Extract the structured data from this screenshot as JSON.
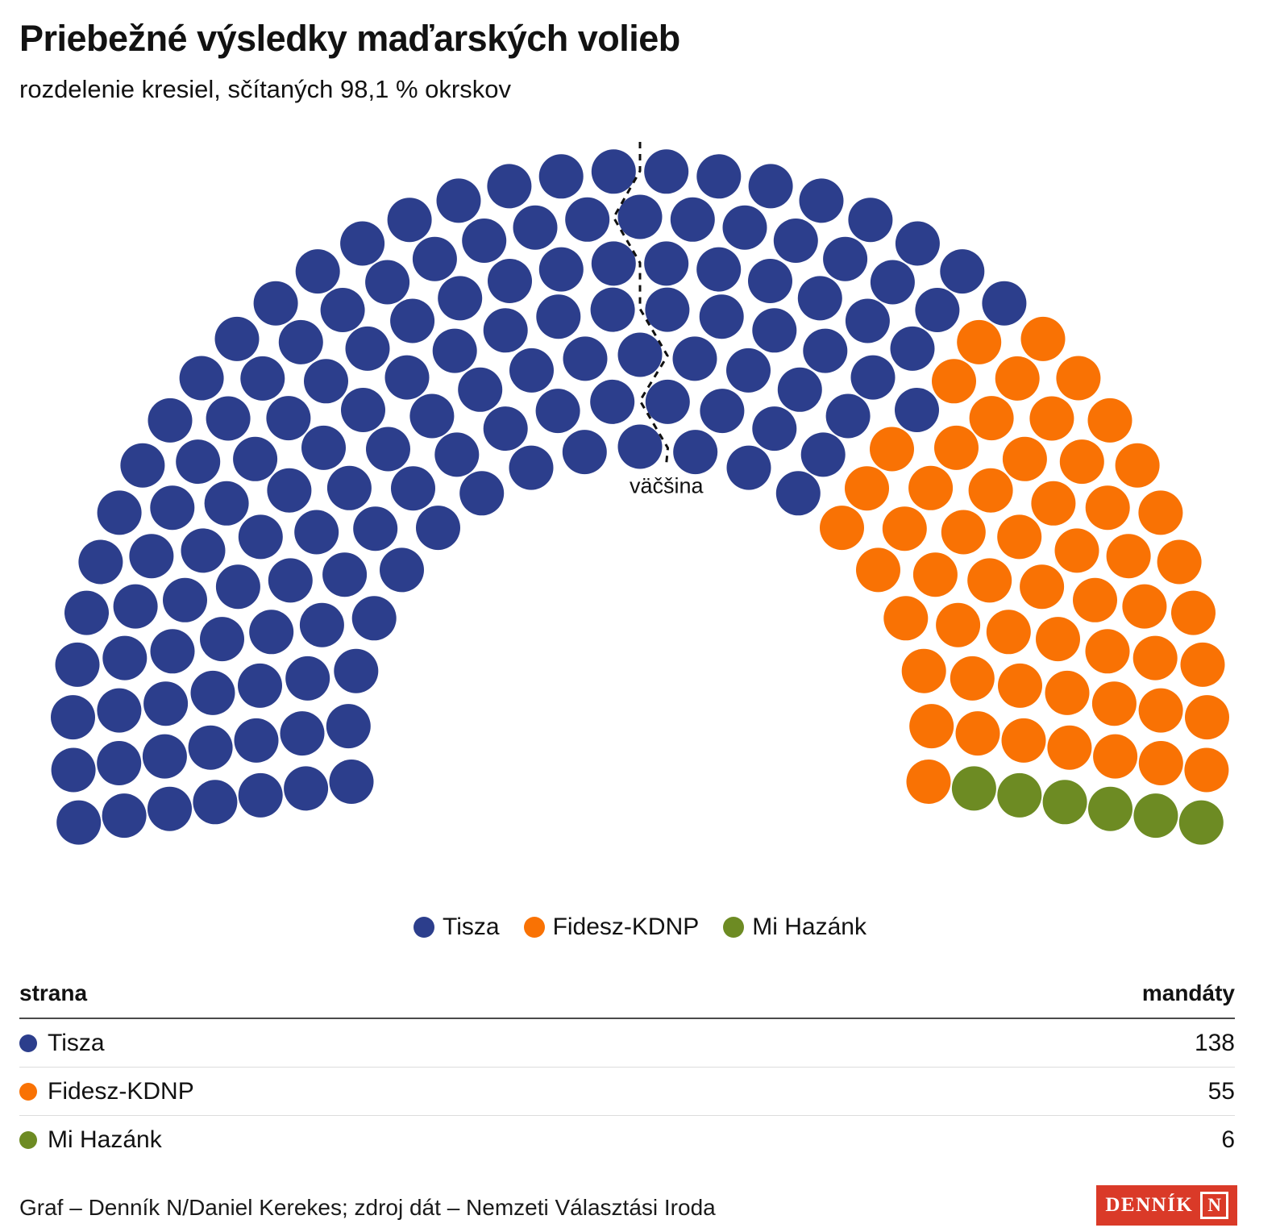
{
  "header": {
    "title": "Priebežné výsledky maďarských volieb",
    "subtitle": "rozdelenie kresiel, sčítaných 98,1 % okrskov"
  },
  "chart_data": {
    "type": "parliament",
    "title": "Priebežné výsledky maďarských volieb",
    "subtitle": "rozdelenie kresiel, sčítaných 98,1 % okrskov",
    "total_seats": 199,
    "majority_threshold": 100,
    "majority_label": "väčšina",
    "series": [
      {
        "name": "Tisza",
        "seats": 138,
        "color": "#2c3e8c"
      },
      {
        "name": "Fidesz-KDNP",
        "seats": 55,
        "color": "#f97204"
      },
      {
        "name": "Mi Hazánk",
        "seats": 6,
        "color": "#6d8b23"
      }
    ],
    "layout": {
      "rows": 7,
      "arc_span_deg": 197,
      "legend_position": "bottom-center"
    }
  },
  "table": {
    "columns": [
      "strana",
      "mandáty"
    ],
    "rows": [
      {
        "name": "Tisza",
        "value": 138
      },
      {
        "name": "Fidesz-KDNP",
        "value": 55
      },
      {
        "name": "Mi Hazánk",
        "value": 6
      }
    ]
  },
  "footer": {
    "credit": "Graf – Denník N/Daniel Kerekes; zdroj dát – Nemzeti Választási Iroda",
    "logo_word": "DENNÍK",
    "logo_letter": "N",
    "logo_color": "#da3a28"
  }
}
